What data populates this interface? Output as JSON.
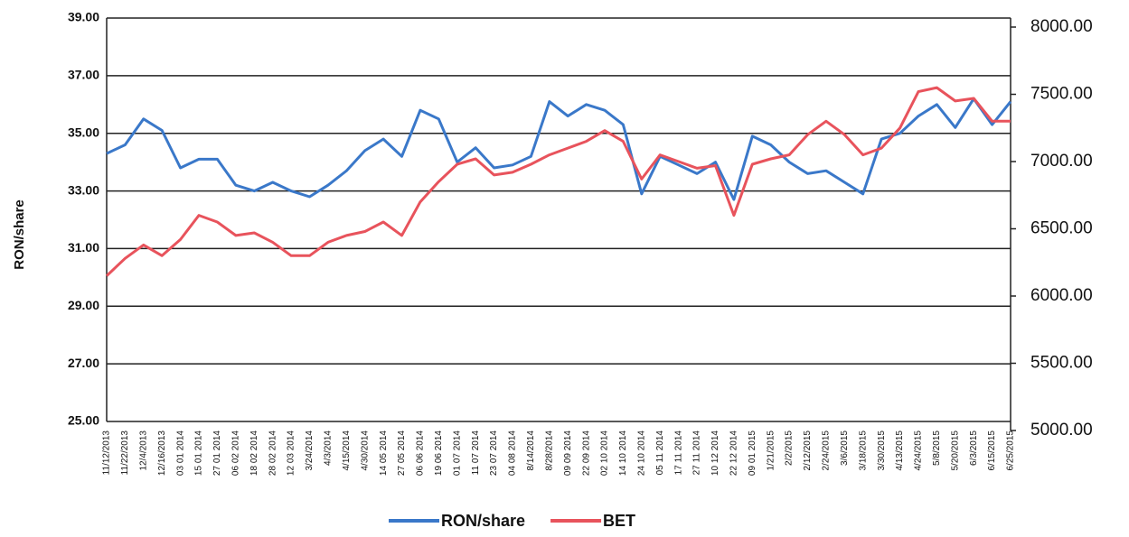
{
  "chart_data": {
    "type": "line",
    "y_label": "RON/share",
    "categories": [
      "11/12/2013",
      "11/22/2013",
      "12/4/2013",
      "12/16/2013",
      "03 01 2014",
      "15 01 2014",
      "27 01 2014",
      "06 02 2014",
      "18 02 2014",
      "28 02 2014",
      "12 03 2014",
      "3/24/2014",
      "4/3/2014",
      "4/15/2014",
      "4/30/2014",
      "14 05 2014",
      "27 05 2014",
      "06 06 2014",
      "19 06 2014",
      "01 07 2014",
      "11 07 2014",
      "23 07 2014",
      "04 08 2014",
      "8/14/2014",
      "8/28/2014",
      "09 09 2014",
      "22 09 2014",
      "02 10 2014",
      "14 10 2014",
      "24 10 2014",
      "05 11 2014",
      "17 11 2014",
      "27 11 2014",
      "10 12 2014",
      "22 12 2014",
      "09 01 2015",
      "1/21/2015",
      "2/2/2015",
      "2/12/2015",
      "2/24/2015",
      "3/6/2015",
      "3/18/2015",
      "3/30/2015",
      "4/13/2015",
      "4/24/2015",
      "5/8/2015",
      "5/20/2015",
      "6/3/2015",
      "6/15/2015",
      "6/25/2015"
    ],
    "series": [
      {
        "name": "RON/share",
        "color": "#3a78c9",
        "axis": "y",
        "values": [
          34.3,
          34.6,
          35.5,
          35.1,
          33.8,
          34.1,
          34.1,
          33.2,
          33.0,
          33.3,
          33.0,
          32.8,
          33.2,
          33.7,
          34.4,
          34.8,
          34.2,
          35.8,
          35.5,
          34.0,
          34.5,
          33.8,
          33.9,
          34.2,
          36.1,
          35.6,
          36.0,
          35.8,
          35.3,
          32.9,
          34.2,
          33.9,
          33.6,
          34.0,
          32.7,
          34.9,
          34.6,
          34.0,
          33.6,
          33.7,
          33.3,
          32.9,
          34.8,
          35.0,
          35.6,
          36.0,
          35.2,
          36.2,
          35.3,
          36.1
        ]
      },
      {
        "name": "BET",
        "color": "#e8535c",
        "axis": "y2",
        "values": [
          6150,
          6280,
          6380,
          6300,
          6420,
          6600,
          6550,
          6450,
          6470,
          6400,
          6300,
          6300,
          6400,
          6450,
          6480,
          6550,
          6450,
          6700,
          6850,
          6980,
          7020,
          6900,
          6920,
          6980,
          7050,
          7100,
          7150,
          7230,
          7150,
          6870,
          7050,
          7000,
          6950,
          6970,
          6600,
          6980,
          7020,
          7050,
          7200,
          7300,
          7200,
          7050,
          7100,
          7250,
          7520,
          7550,
          7450,
          7470,
          7300,
          7300
        ]
      }
    ],
    "ylim": [
      25,
      39
    ],
    "yticks": [
      {
        "value": 25,
        "label": "25.00"
      },
      {
        "value": 27,
        "label": "27.00"
      },
      {
        "value": 29,
        "label": "29.00"
      },
      {
        "value": 31,
        "label": "31.00"
      },
      {
        "value": 33,
        "label": "33.00"
      },
      {
        "value": 35,
        "label": "35.00"
      },
      {
        "value": 37,
        "label": "37.00"
      },
      {
        "value": 39,
        "label": "39.00"
      }
    ],
    "y2lim": [
      5000,
      8000
    ],
    "y2ticks": [
      {
        "value": 5000,
        "label": "5000.00"
      },
      {
        "value": 5500,
        "label": "5500.00"
      },
      {
        "value": 6000,
        "label": "6000.00"
      },
      {
        "value": 6500,
        "label": "6500.00"
      },
      {
        "value": 7000,
        "label": "7000.00"
      },
      {
        "value": 7500,
        "label": "7500.00"
      },
      {
        "value": 8000,
        "label": "8000.00"
      }
    ],
    "grid": true,
    "legend": "bottom"
  }
}
